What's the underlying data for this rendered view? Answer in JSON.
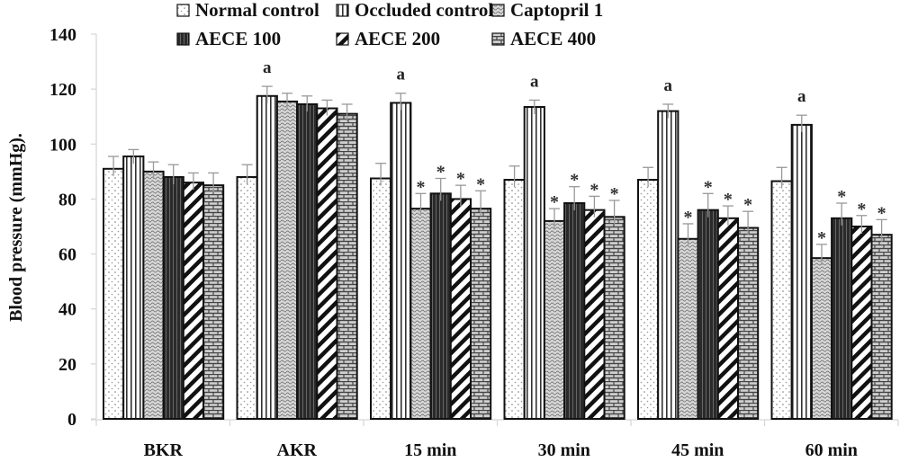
{
  "chart_data": {
    "type": "bar",
    "title": "",
    "xlabel": "",
    "ylabel": "Blood pressure (mmHg).",
    "ylim": [
      0,
      140
    ],
    "yticks": [
      0,
      20,
      40,
      60,
      80,
      100,
      120,
      140
    ],
    "ytick_labels": [
      "0",
      "20",
      "40",
      "60",
      "80",
      "100",
      "120",
      "140"
    ],
    "grid": false,
    "legend_position": "top",
    "categories": [
      "BKR",
      "AKR",
      "15 min",
      "30 min",
      "45 min",
      "60 min"
    ],
    "series": [
      {
        "name": "Normal control",
        "pattern": "dots",
        "values": [
          91,
          88,
          87.5,
          87,
          87,
          86.5
        ],
        "errors": [
          4.5,
          4.5,
          5.5,
          5,
          4.5,
          5
        ]
      },
      {
        "name": "Occluded control",
        "pattern": "vlines",
        "values": [
          95.5,
          117.5,
          115,
          113.5,
          112,
          107
        ],
        "errors": [
          2.5,
          3.5,
          3.5,
          2.5,
          2.5,
          3.5
        ]
      },
      {
        "name": "Captopril 1",
        "pattern": "waves",
        "values": [
          90,
          115.5,
          76.5,
          72,
          65.5,
          58.5
        ],
        "errors": [
          3.5,
          3,
          5.5,
          4.5,
          5.5,
          5
        ]
      },
      {
        "name": "AECE 100",
        "pattern": "dark",
        "values": [
          88,
          114.5,
          82,
          78.5,
          76,
          73
        ],
        "errors": [
          4.5,
          3,
          5.5,
          6,
          6,
          5.5
        ]
      },
      {
        "name": "AECE 200",
        "pattern": "diagonal",
        "values": [
          86,
          113,
          80,
          76,
          73,
          70
        ],
        "errors": [
          3.5,
          3,
          5,
          5,
          4.5,
          4
        ]
      },
      {
        "name": "AECE 400",
        "pattern": "bricks",
        "values": [
          85,
          111,
          76.5,
          73.5,
          69.5,
          67
        ],
        "errors": [
          4.5,
          3.5,
          6.5,
          6,
          6,
          5.5
        ]
      }
    ],
    "annotations": [
      {
        "series": "Occluded control",
        "categories": [
          "AKR",
          "15 min",
          "30 min",
          "45 min",
          "60 min"
        ],
        "text": "a"
      },
      {
        "series": "Captopril 1",
        "categories": [
          "15 min",
          "30 min",
          "45 min",
          "60 min"
        ],
        "text": "*"
      },
      {
        "series": "AECE 100",
        "categories": [
          "15 min",
          "30 min",
          "45 min",
          "60 min"
        ],
        "text": "*"
      },
      {
        "series": "AECE 200",
        "categories": [
          "15 min",
          "30 min",
          "45 min",
          "60 min"
        ],
        "text": "*"
      },
      {
        "series": "AECE 400",
        "categories": [
          "15 min",
          "30 min",
          "45 min",
          "60 min"
        ],
        "text": "*"
      }
    ]
  }
}
